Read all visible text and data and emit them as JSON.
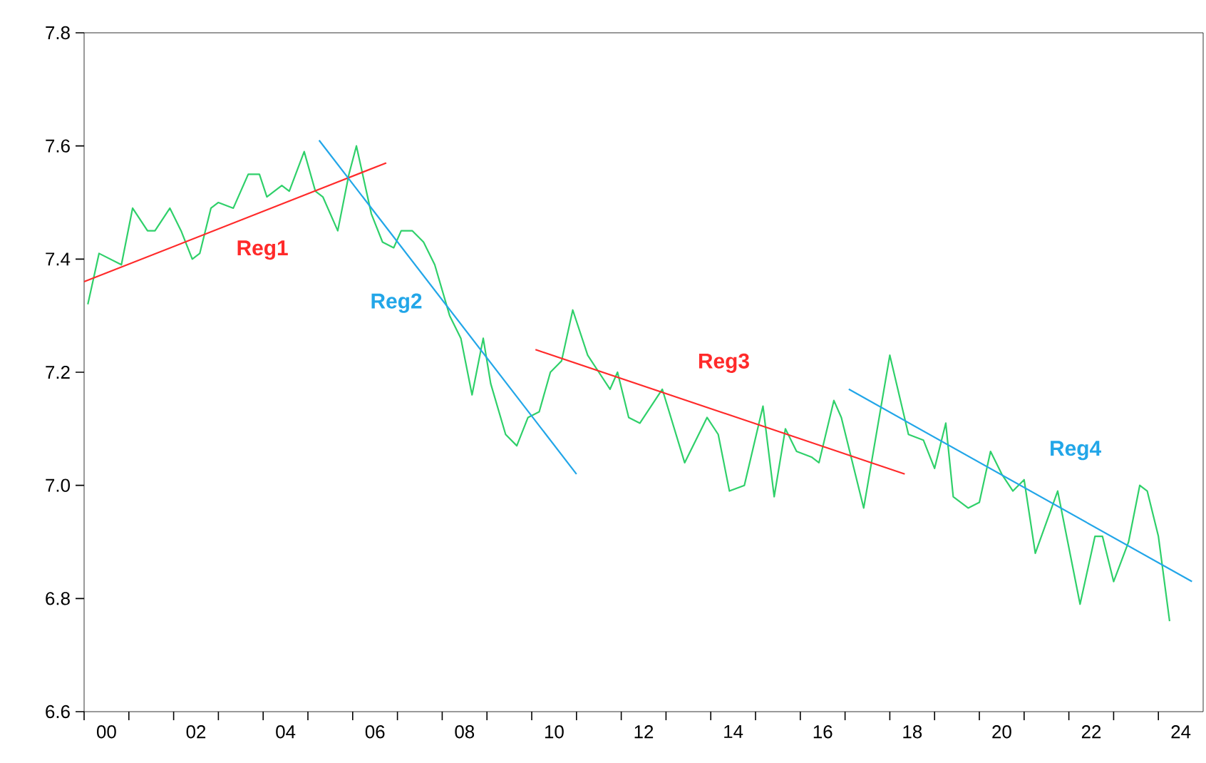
{
  "chart_data": {
    "type": "line",
    "xlim": [
      "2000-01",
      "2025-01"
    ],
    "ylim": [
      6.6,
      7.8
    ],
    "yticks": [
      6.6,
      6.8,
      {
        "value": 7,
        "label": "7.0"
      },
      7.2,
      7.4,
      7.6,
      7.8
    ],
    "xticks": [
      {
        "value": "2000-07-01",
        "label": "00"
      },
      {
        "value": "2002-07-01",
        "label": "02"
      },
      {
        "value": "2004-07-01",
        "label": "04"
      },
      {
        "value": "2006-07-01",
        "label": "06"
      },
      {
        "value": "2008-07-01",
        "label": "08"
      },
      {
        "value": "2010-07-01",
        "label": "10"
      },
      {
        "value": "2012-07-01",
        "label": "12"
      },
      {
        "value": "2014-07-01",
        "label": "14"
      },
      {
        "value": "2016-07-01",
        "label": "16"
      },
      {
        "value": "2018-07-01",
        "label": "18"
      },
      {
        "value": "2020-07-01",
        "label": "20"
      },
      {
        "value": "2022-07-01",
        "label": "22"
      },
      {
        "value": "2024-07-01",
        "label": "24"
      },
      {
        "value": "2000-01",
        "label": null
      },
      {
        "value": "2001-01",
        "label": null
      },
      {
        "value": "2002-01",
        "label": null
      },
      {
        "value": "2003-01",
        "label": null
      },
      {
        "value": "2004-01",
        "label": null
      },
      {
        "value": "2005-01",
        "label": null
      },
      {
        "value": "2006-01",
        "label": null
      },
      {
        "value": "2007-01",
        "label": null
      },
      {
        "value": "2008-01",
        "label": null
      },
      {
        "value": "2009-01",
        "label": null
      },
      {
        "value": "2010-01",
        "label": null
      },
      {
        "value": "2011-01",
        "label": null
      },
      {
        "value": "2012-01",
        "label": null
      },
      {
        "value": "2013-01",
        "label": null
      },
      {
        "value": "2014-01",
        "label": null
      },
      {
        "value": "2015-01",
        "label": null
      },
      {
        "value": "2016-01",
        "label": null
      },
      {
        "value": "2017-01",
        "label": null
      },
      {
        "value": "2018-01",
        "label": null
      },
      {
        "value": "2019-01",
        "label": null
      },
      {
        "value": "2020-01",
        "label": null
      },
      {
        "value": "2021-01",
        "label": null
      },
      {
        "value": "2022-01",
        "label": null
      },
      {
        "value": "2023-01",
        "label": null
      },
      {
        "value": "2024-01",
        "label": null
      }
    ],
    "grid": false,
    "legend": false,
    "marker": "none",
    "line_style": "solid",
    "series": [
      {
        "color": "#2fd06a",
        "x": [
          "2000-02",
          "2000-05",
          "2000-11",
          "2001-02",
          "2001-06",
          "2001-08",
          "2001-12",
          "2002-03",
          "2002-06",
          "2002-08",
          "2002-11",
          "2003-01",
          "2003-05",
          "2003-09",
          "2003-12",
          "2004-02",
          "2004-06",
          "2004-08",
          "2004-12",
          "2005-03",
          "2005-05",
          "2005-09",
          "2005-12",
          "2006-02",
          "2006-06",
          "2006-09",
          "2006-12",
          "2007-02",
          "2007-05",
          "2007-08",
          "2007-11",
          "2008-03",
          "2008-06",
          "2008-09",
          "2008-12",
          "2009-02",
          "2009-06",
          "2009-09",
          "2009-12",
          "2010-03",
          "2010-06",
          "2010-09",
          "2010-12",
          "2011-04",
          "2011-07",
          "2011-10",
          "2011-12",
          "2012-03",
          "2012-06",
          "2012-12",
          "2013-06",
          "2013-12",
          "2014-03",
          "2014-06",
          "2014-10",
          "2015-03",
          "2015-06",
          "2015-09",
          "2015-12",
          "2016-04",
          "2016-06",
          "2016-10",
          "2016-12",
          "2017-06",
          "2018-01",
          "2018-06",
          "2018-10",
          "2019-01",
          "2019-04",
          "2019-06",
          "2019-10",
          "2020-01",
          "2020-04",
          "2020-07",
          "2020-10",
          "2021-01",
          "2021-04",
          "2021-10",
          "2022-04",
          "2022-08",
          "2022-10",
          "2023-01",
          "2023-05",
          "2023-08",
          "2023-10",
          "2024-01",
          "2024-04"
        ],
        "values": [
          7.32,
          7.41,
          7.39,
          7.49,
          7.45,
          7.45,
          7.49,
          7.45,
          7.4,
          7.41,
          7.49,
          7.5,
          7.49,
          7.55,
          7.55,
          7.51,
          7.53,
          7.52,
          7.59,
          7.52,
          7.51,
          7.45,
          7.55,
          7.6,
          7.48,
          7.43,
          7.42,
          7.45,
          7.45,
          7.43,
          7.39,
          7.3,
          7.26,
          7.16,
          7.26,
          7.18,
          7.09,
          7.07,
          7.12,
          7.13,
          7.2,
          7.22,
          7.31,
          7.23,
          7.2,
          7.17,
          7.2,
          7.12,
          7.11,
          7.17,
          7.04,
          7.12,
          7.09,
          6.99,
          7.0,
          7.14,
          6.98,
          7.1,
          7.06,
          7.05,
          7.04,
          7.15,
          7.12,
          6.96,
          7.23,
          7.09,
          7.08,
          7.03,
          7.11,
          6.98,
          6.96,
          6.97,
          7.06,
          7.02,
          6.99,
          7.01,
          6.88,
          6.99,
          6.79,
          6.91,
          6.91,
          6.83,
          6.9,
          7.0,
          6.99,
          6.91,
          6.76
        ]
      },
      {
        "name": "Reg1",
        "color": "#ff2a2a",
        "x": [
          "2000-01",
          "2006-10"
        ],
        "values": [
          7.36,
          7.57
        ]
      },
      {
        "name": "Reg2",
        "color": "#22a6e8",
        "x": [
          "2005-04",
          "2011-01"
        ],
        "values": [
          7.61,
          7.02
        ]
      },
      {
        "name": "Reg3",
        "color": "#ff2a2a",
        "x": [
          "2010-02",
          "2018-05"
        ],
        "values": [
          7.24,
          7.02
        ]
      },
      {
        "name": "Reg4",
        "color": "#22a6e8",
        "x": [
          "2017-02",
          "2024-10"
        ],
        "values": [
          7.17,
          6.83
        ]
      }
    ]
  }
}
